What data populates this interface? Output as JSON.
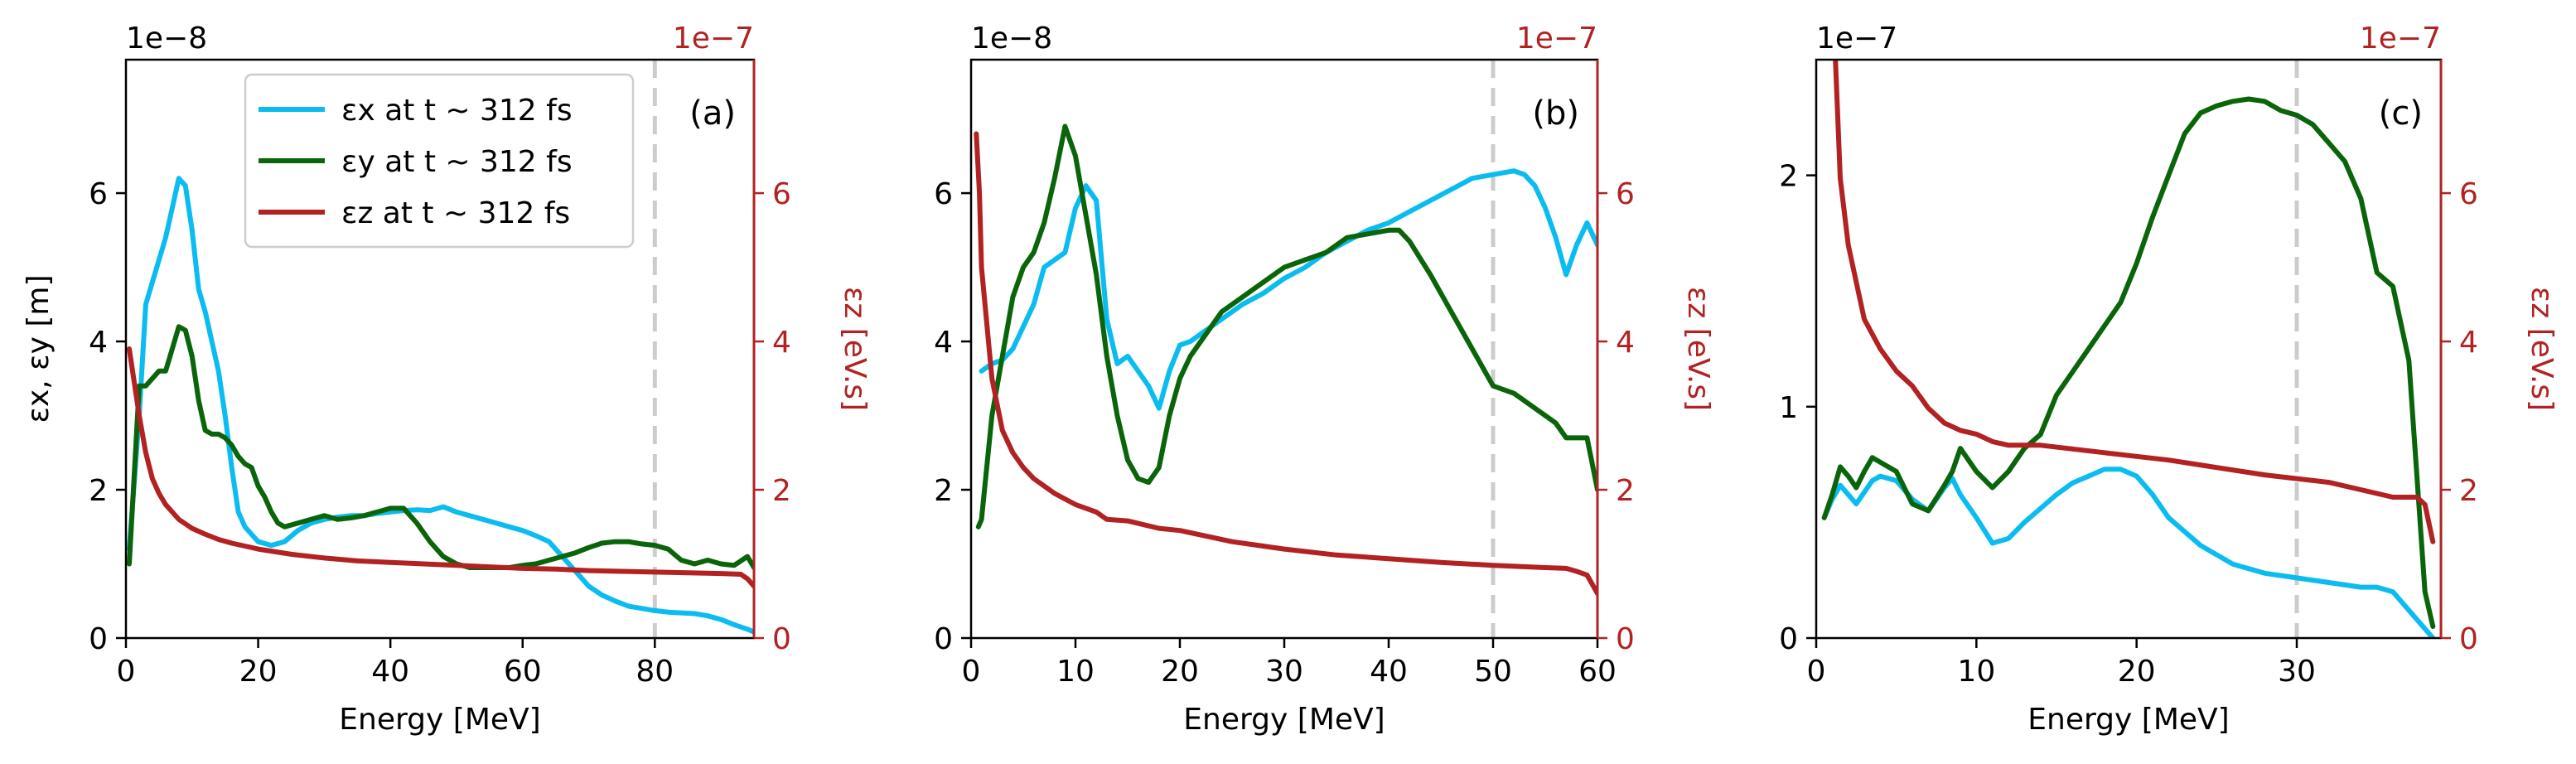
{
  "colors": {
    "ex": "#0bbcf0",
    "ey": "#0a650a",
    "ez": "#b22222",
    "vline": "#cccccc",
    "axis": "#000000",
    "right_axis": "#b22222"
  },
  "legend": {
    "entries": [
      "εx at t ~ 312 fs",
      "εy at t ~ 312 fs",
      "εz at t ~ 312 fs"
    ],
    "location": "upper-center of panel (a)"
  },
  "chart_data": [
    {
      "type": "line",
      "panel_label": "(a)",
      "xlabel": "Energy [MeV]",
      "ylabel_left": "εx, εy [m]",
      "ylabel_right": "εz [eV.s]",
      "left_scale_label": "1e−8",
      "right_scale_label": "1e−7",
      "xlim": [
        0,
        95
      ],
      "ylim_left": [
        0,
        7.8
      ],
      "ylim_right": [
        0,
        7.8
      ],
      "xticks": [
        0,
        20,
        40,
        60,
        80
      ],
      "yticks_left": [
        0,
        2,
        4,
        6
      ],
      "yticks_right": [
        0,
        2,
        4,
        6
      ],
      "vline": 80,
      "series": [
        {
          "name": "εx at t ~ 312 fs",
          "axis": "left",
          "color_key": "ex",
          "x": [
            0.5,
            2,
            3,
            4,
            5,
            6,
            7,
            8,
            9,
            10,
            11,
            12,
            13,
            14,
            15,
            16,
            17,
            18,
            20,
            22,
            24,
            26,
            28,
            30,
            32,
            34,
            36,
            38,
            40,
            42,
            44,
            46,
            48,
            50,
            52,
            54,
            56,
            58,
            60,
            62,
            64,
            66,
            68,
            70,
            72,
            74,
            76,
            78,
            80,
            82,
            84,
            86,
            88,
            90,
            92,
            94,
            95
          ],
          "y": [
            1.2,
            3.0,
            4.5,
            4.8,
            5.1,
            5.4,
            5.8,
            6.2,
            6.1,
            5.5,
            4.7,
            4.4,
            4.0,
            3.6,
            3.0,
            2.3,
            1.7,
            1.5,
            1.3,
            1.25,
            1.3,
            1.45,
            1.55,
            1.6,
            1.63,
            1.65,
            1.65,
            1.68,
            1.7,
            1.72,
            1.73,
            1.72,
            1.77,
            1.7,
            1.65,
            1.6,
            1.55,
            1.5,
            1.45,
            1.38,
            1.3,
            1.1,
            0.9,
            0.7,
            0.58,
            0.5,
            0.43,
            0.4,
            0.37,
            0.35,
            0.34,
            0.33,
            0.3,
            0.25,
            0.18,
            0.12,
            0.08
          ]
        },
        {
          "name": "εy at t ~ 312 fs",
          "axis": "left",
          "color_key": "ey",
          "x": [
            0.5,
            2,
            3,
            4,
            5,
            6,
            7,
            8,
            9,
            10,
            11,
            12,
            13,
            14,
            15,
            16,
            17,
            18,
            19,
            20,
            21,
            22,
            23,
            24,
            26,
            28,
            30,
            32,
            34,
            36,
            38,
            40,
            42,
            44,
            46,
            48,
            50,
            52,
            54,
            56,
            58,
            60,
            62,
            64,
            66,
            68,
            70,
            72,
            74,
            76,
            78,
            80,
            82,
            84,
            86,
            88,
            90,
            92,
            94,
            95
          ],
          "y": [
            1.0,
            3.4,
            3.4,
            3.5,
            3.6,
            3.6,
            3.9,
            4.2,
            4.15,
            3.8,
            3.2,
            2.8,
            2.75,
            2.75,
            2.7,
            2.6,
            2.45,
            2.35,
            2.3,
            2.05,
            1.9,
            1.7,
            1.55,
            1.5,
            1.55,
            1.6,
            1.65,
            1.6,
            1.62,
            1.65,
            1.7,
            1.75,
            1.75,
            1.55,
            1.3,
            1.1,
            1.0,
            0.95,
            0.95,
            0.95,
            0.95,
            0.98,
            1.0,
            1.05,
            1.1,
            1.15,
            1.22,
            1.28,
            1.3,
            1.3,
            1.27,
            1.25,
            1.2,
            1.05,
            1.0,
            1.05,
            1.0,
            0.98,
            1.1,
            0.95
          ]
        },
        {
          "name": "εz at t ~ 312 fs",
          "axis": "right",
          "color_key": "ez",
          "x": [
            0.5,
            1,
            2,
            3,
            4,
            5,
            6,
            7,
            8,
            10,
            12,
            14,
            16,
            18,
            20,
            25,
            30,
            35,
            40,
            45,
            50,
            55,
            60,
            65,
            70,
            75,
            80,
            85,
            90,
            93,
            94,
            95
          ],
          "y": [
            3.9,
            3.6,
            3.0,
            2.5,
            2.15,
            1.95,
            1.8,
            1.7,
            1.6,
            1.48,
            1.4,
            1.33,
            1.28,
            1.24,
            1.2,
            1.13,
            1.08,
            1.04,
            1.02,
            1.0,
            0.98,
            0.96,
            0.94,
            0.93,
            0.91,
            0.9,
            0.89,
            0.88,
            0.87,
            0.86,
            0.8,
            0.7
          ]
        }
      ]
    },
    {
      "type": "line",
      "panel_label": "(b)",
      "xlabel": "Energy [MeV]",
      "ylabel_right": "εz [eV.s]",
      "left_scale_label": "1e−8",
      "right_scale_label": "1e−7",
      "xlim": [
        0,
        60
      ],
      "ylim_left": [
        0,
        7.8
      ],
      "ylim_right": [
        0,
        7.8
      ],
      "xticks": [
        0,
        10,
        20,
        30,
        40,
        50,
        60
      ],
      "yticks_left": [
        0,
        2,
        4,
        6
      ],
      "yticks_right": [
        0,
        2,
        4,
        6
      ],
      "vline": 50,
      "series": [
        {
          "name": "εx at t ~ 312 fs",
          "axis": "left",
          "color_key": "ex",
          "x": [
            1,
            2,
            3,
            4,
            5,
            6,
            7,
            8,
            9,
            10,
            11,
            11.5,
            12,
            13,
            14,
            15,
            16,
            17,
            18,
            19,
            20,
            21,
            22,
            24,
            26,
            28,
            30,
            32,
            34,
            36,
            38,
            40,
            42,
            44,
            46,
            48,
            50,
            52,
            53,
            54,
            55,
            56,
            57,
            58,
            59,
            60
          ],
          "y": [
            3.6,
            3.7,
            3.75,
            3.9,
            4.2,
            4.5,
            5.0,
            5.1,
            5.2,
            5.8,
            6.1,
            6.0,
            5.9,
            4.3,
            3.7,
            3.8,
            3.6,
            3.4,
            3.1,
            3.6,
            3.95,
            4.0,
            4.1,
            4.3,
            4.5,
            4.65,
            4.85,
            5.0,
            5.2,
            5.35,
            5.5,
            5.6,
            5.75,
            5.9,
            6.05,
            6.2,
            6.25,
            6.3,
            6.25,
            6.1,
            5.8,
            5.4,
            4.9,
            5.3,
            5.6,
            5.3
          ]
        },
        {
          "name": "εy at t ~ 312 fs",
          "axis": "left",
          "color_key": "ey",
          "x": [
            0.7,
            1,
            2,
            3,
            4,
            5,
            6,
            7,
            8,
            9,
            10,
            11,
            12,
            13,
            14,
            15,
            16,
            17,
            18,
            19,
            20,
            21,
            22,
            24,
            26,
            28,
            30,
            32,
            34,
            36,
            38,
            40,
            41,
            42,
            44,
            46,
            48,
            50,
            52,
            54,
            56,
            57,
            58,
            59,
            60
          ],
          "y": [
            1.5,
            1.6,
            3.0,
            3.8,
            4.6,
            5.0,
            5.2,
            5.6,
            6.2,
            6.9,
            6.5,
            5.7,
            4.9,
            3.8,
            3.0,
            2.4,
            2.15,
            2.1,
            2.3,
            3.0,
            3.5,
            3.8,
            4.0,
            4.4,
            4.6,
            4.8,
            5.0,
            5.1,
            5.2,
            5.4,
            5.45,
            5.5,
            5.5,
            5.35,
            4.9,
            4.4,
            3.9,
            3.4,
            3.3,
            3.1,
            2.9,
            2.7,
            2.7,
            2.7,
            2.0
          ]
        },
        {
          "name": "εz at t ~ 312 fs",
          "axis": "right",
          "color_key": "ez",
          "x": [
            0.5,
            0.8,
            1,
            2,
            3,
            4,
            5,
            6,
            8,
            10,
            12,
            13,
            15,
            18,
            20,
            25,
            30,
            35,
            40,
            45,
            50,
            55,
            57,
            58,
            59,
            60
          ],
          "y": [
            6.8,
            6.0,
            5.0,
            3.5,
            2.8,
            2.5,
            2.3,
            2.15,
            1.95,
            1.8,
            1.7,
            1.6,
            1.58,
            1.48,
            1.45,
            1.3,
            1.2,
            1.12,
            1.07,
            1.02,
            0.98,
            0.95,
            0.94,
            0.9,
            0.85,
            0.6
          ]
        }
      ]
    },
    {
      "type": "line",
      "panel_label": "(c)",
      "xlabel": "Energy [MeV]",
      "ylabel_right": "εz [eV.s]",
      "left_scale_label": "1e−7",
      "right_scale_label": "1e−7",
      "xlim": [
        0,
        39
      ],
      "ylim_left": [
        0,
        2.5
      ],
      "ylim_right": [
        0,
        7.8
      ],
      "xticks": [
        0,
        10,
        20,
        30
      ],
      "yticks_left": [
        0,
        1,
        2
      ],
      "yticks_right": [
        0,
        2,
        4,
        6
      ],
      "vline": 30,
      "series": [
        {
          "name": "εx at t ~ 312 fs",
          "axis": "left",
          "color_key": "ex",
          "x": [
            0.5,
            1,
            1.5,
            2,
            2.5,
            3,
            3.5,
            4,
            5,
            6,
            7,
            8,
            8.5,
            9,
            10,
            11,
            12,
            13,
            14,
            15,
            16,
            17,
            18,
            19,
            20,
            21,
            22,
            24,
            26,
            28,
            30,
            32,
            34,
            35,
            36,
            37,
            38,
            38.5
          ],
          "y": [
            0.52,
            0.6,
            0.66,
            0.62,
            0.58,
            0.63,
            0.68,
            0.7,
            0.68,
            0.6,
            0.55,
            0.65,
            0.69,
            0.62,
            0.52,
            0.41,
            0.43,
            0.5,
            0.56,
            0.62,
            0.67,
            0.7,
            0.73,
            0.73,
            0.7,
            0.62,
            0.52,
            0.4,
            0.32,
            0.28,
            0.26,
            0.24,
            0.22,
            0.22,
            0.2,
            0.12,
            0.04,
            0.0
          ]
        },
        {
          "name": "εy at t ~ 312 fs",
          "axis": "left",
          "color_key": "ey",
          "x": [
            0.5,
            1,
            1.5,
            2,
            2.5,
            3,
            3.5,
            4,
            5,
            6,
            7,
            8,
            8.5,
            9,
            10,
            11,
            12,
            13,
            14,
            15,
            16,
            17,
            18,
            19,
            20,
            21,
            22,
            23,
            24,
            25,
            26,
            27,
            28,
            29,
            30,
            31,
            32,
            33,
            34,
            35,
            36,
            37,
            37.5,
            38,
            38.5
          ],
          "y": [
            0.52,
            0.62,
            0.74,
            0.7,
            0.65,
            0.72,
            0.78,
            0.76,
            0.72,
            0.58,
            0.55,
            0.66,
            0.72,
            0.82,
            0.72,
            0.65,
            0.72,
            0.82,
            0.88,
            1.05,
            1.15,
            1.25,
            1.35,
            1.45,
            1.62,
            1.82,
            2.0,
            2.18,
            2.27,
            2.3,
            2.32,
            2.33,
            2.32,
            2.28,
            2.26,
            2.22,
            2.14,
            2.06,
            1.9,
            1.58,
            1.52,
            1.2,
            0.7,
            0.2,
            0.05
          ]
        },
        {
          "name": "εz at t ~ 312 fs",
          "axis": "right",
          "color_key": "ez",
          "x": [
            1.2,
            1.5,
            2,
            3,
            4,
            5,
            6,
            7,
            8,
            9,
            10,
            11,
            12,
            14,
            16,
            18,
            20,
            22,
            25,
            28,
            30,
            32,
            34,
            35,
            36,
            37,
            37.5,
            38,
            38.5
          ],
          "y": [
            7.8,
            6.2,
            5.3,
            4.3,
            3.9,
            3.6,
            3.4,
            3.1,
            2.9,
            2.8,
            2.75,
            2.65,
            2.6,
            2.6,
            2.55,
            2.5,
            2.45,
            2.4,
            2.3,
            2.2,
            2.15,
            2.1,
            2.0,
            1.95,
            1.9,
            1.9,
            1.9,
            1.8,
            1.3
          ]
        }
      ]
    }
  ]
}
